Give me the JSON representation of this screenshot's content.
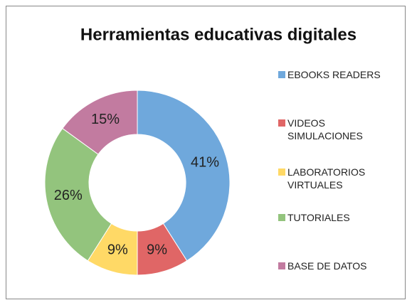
{
  "chart_data": {
    "type": "donut",
    "title": "Herramientas educativas digitales",
    "categories": [
      "EBOOKS READERS",
      "VIDEOS SIMULACIONES",
      "LABORATORIOS VIRTUALES",
      "TUTORIALES",
      "BASE DE DATOS"
    ],
    "values": [
      41,
      9,
      9,
      26,
      15
    ],
    "value_labels": [
      "41%",
      "9%",
      "9%",
      "26%",
      "15%"
    ],
    "colors": [
      "#6fa8dc",
      "#e06666",
      "#ffd966",
      "#93c47d",
      "#c27ba0"
    ],
    "legend": "right"
  }
}
